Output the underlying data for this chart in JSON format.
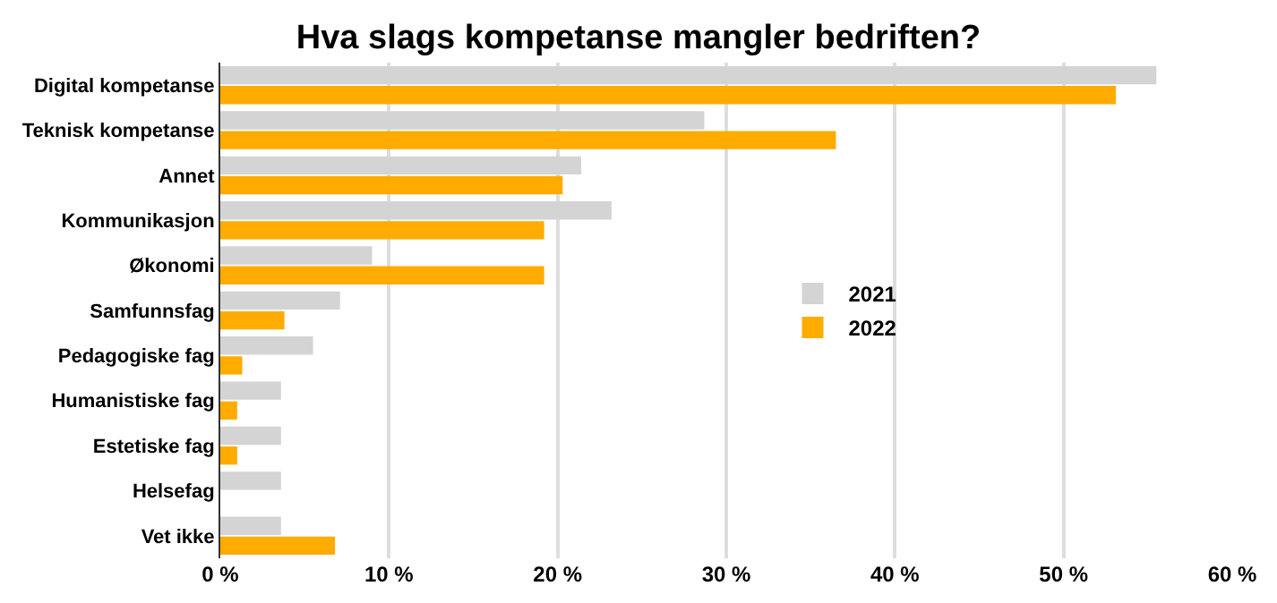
{
  "chart_data": {
    "type": "bar",
    "orientation": "horizontal",
    "title": "Hva slags kompetanse mangler bedriften?",
    "categories": [
      "Digital kompetanse",
      "Teknisk kompetanse",
      "Annet",
      "Kommunikasjon",
      "Økonomi",
      "Samfunnsfag",
      "Pedagogiske fag",
      "Humanistiske fag",
      "Estetiske fag",
      "Helsefag",
      "Vet ikke"
    ],
    "series": [
      {
        "name": "2021",
        "color": "#d4d4d4",
        "values": [
          55.5,
          28.7,
          21.4,
          23.2,
          9.0,
          7.1,
          5.5,
          3.6,
          3.6,
          3.6,
          3.6
        ]
      },
      {
        "name": "2022",
        "color": "#ffab00",
        "values": [
          53.1,
          36.5,
          20.3,
          19.2,
          19.2,
          3.8,
          1.3,
          1.0,
          1.0,
          0,
          6.8
        ]
      }
    ],
    "xlim": [
      0,
      60
    ],
    "xticks": [
      {
        "value": 0,
        "label": "0 %"
      },
      {
        "value": 10,
        "label": "10 %"
      },
      {
        "value": 20,
        "label": "20 %"
      },
      {
        "value": 30,
        "label": "30 %"
      },
      {
        "value": 40,
        "label": "40 %"
      },
      {
        "value": 50,
        "label": "50 %"
      },
      {
        "value": 60,
        "label": "60 %"
      }
    ],
    "grid": "x",
    "legend": "right"
  }
}
